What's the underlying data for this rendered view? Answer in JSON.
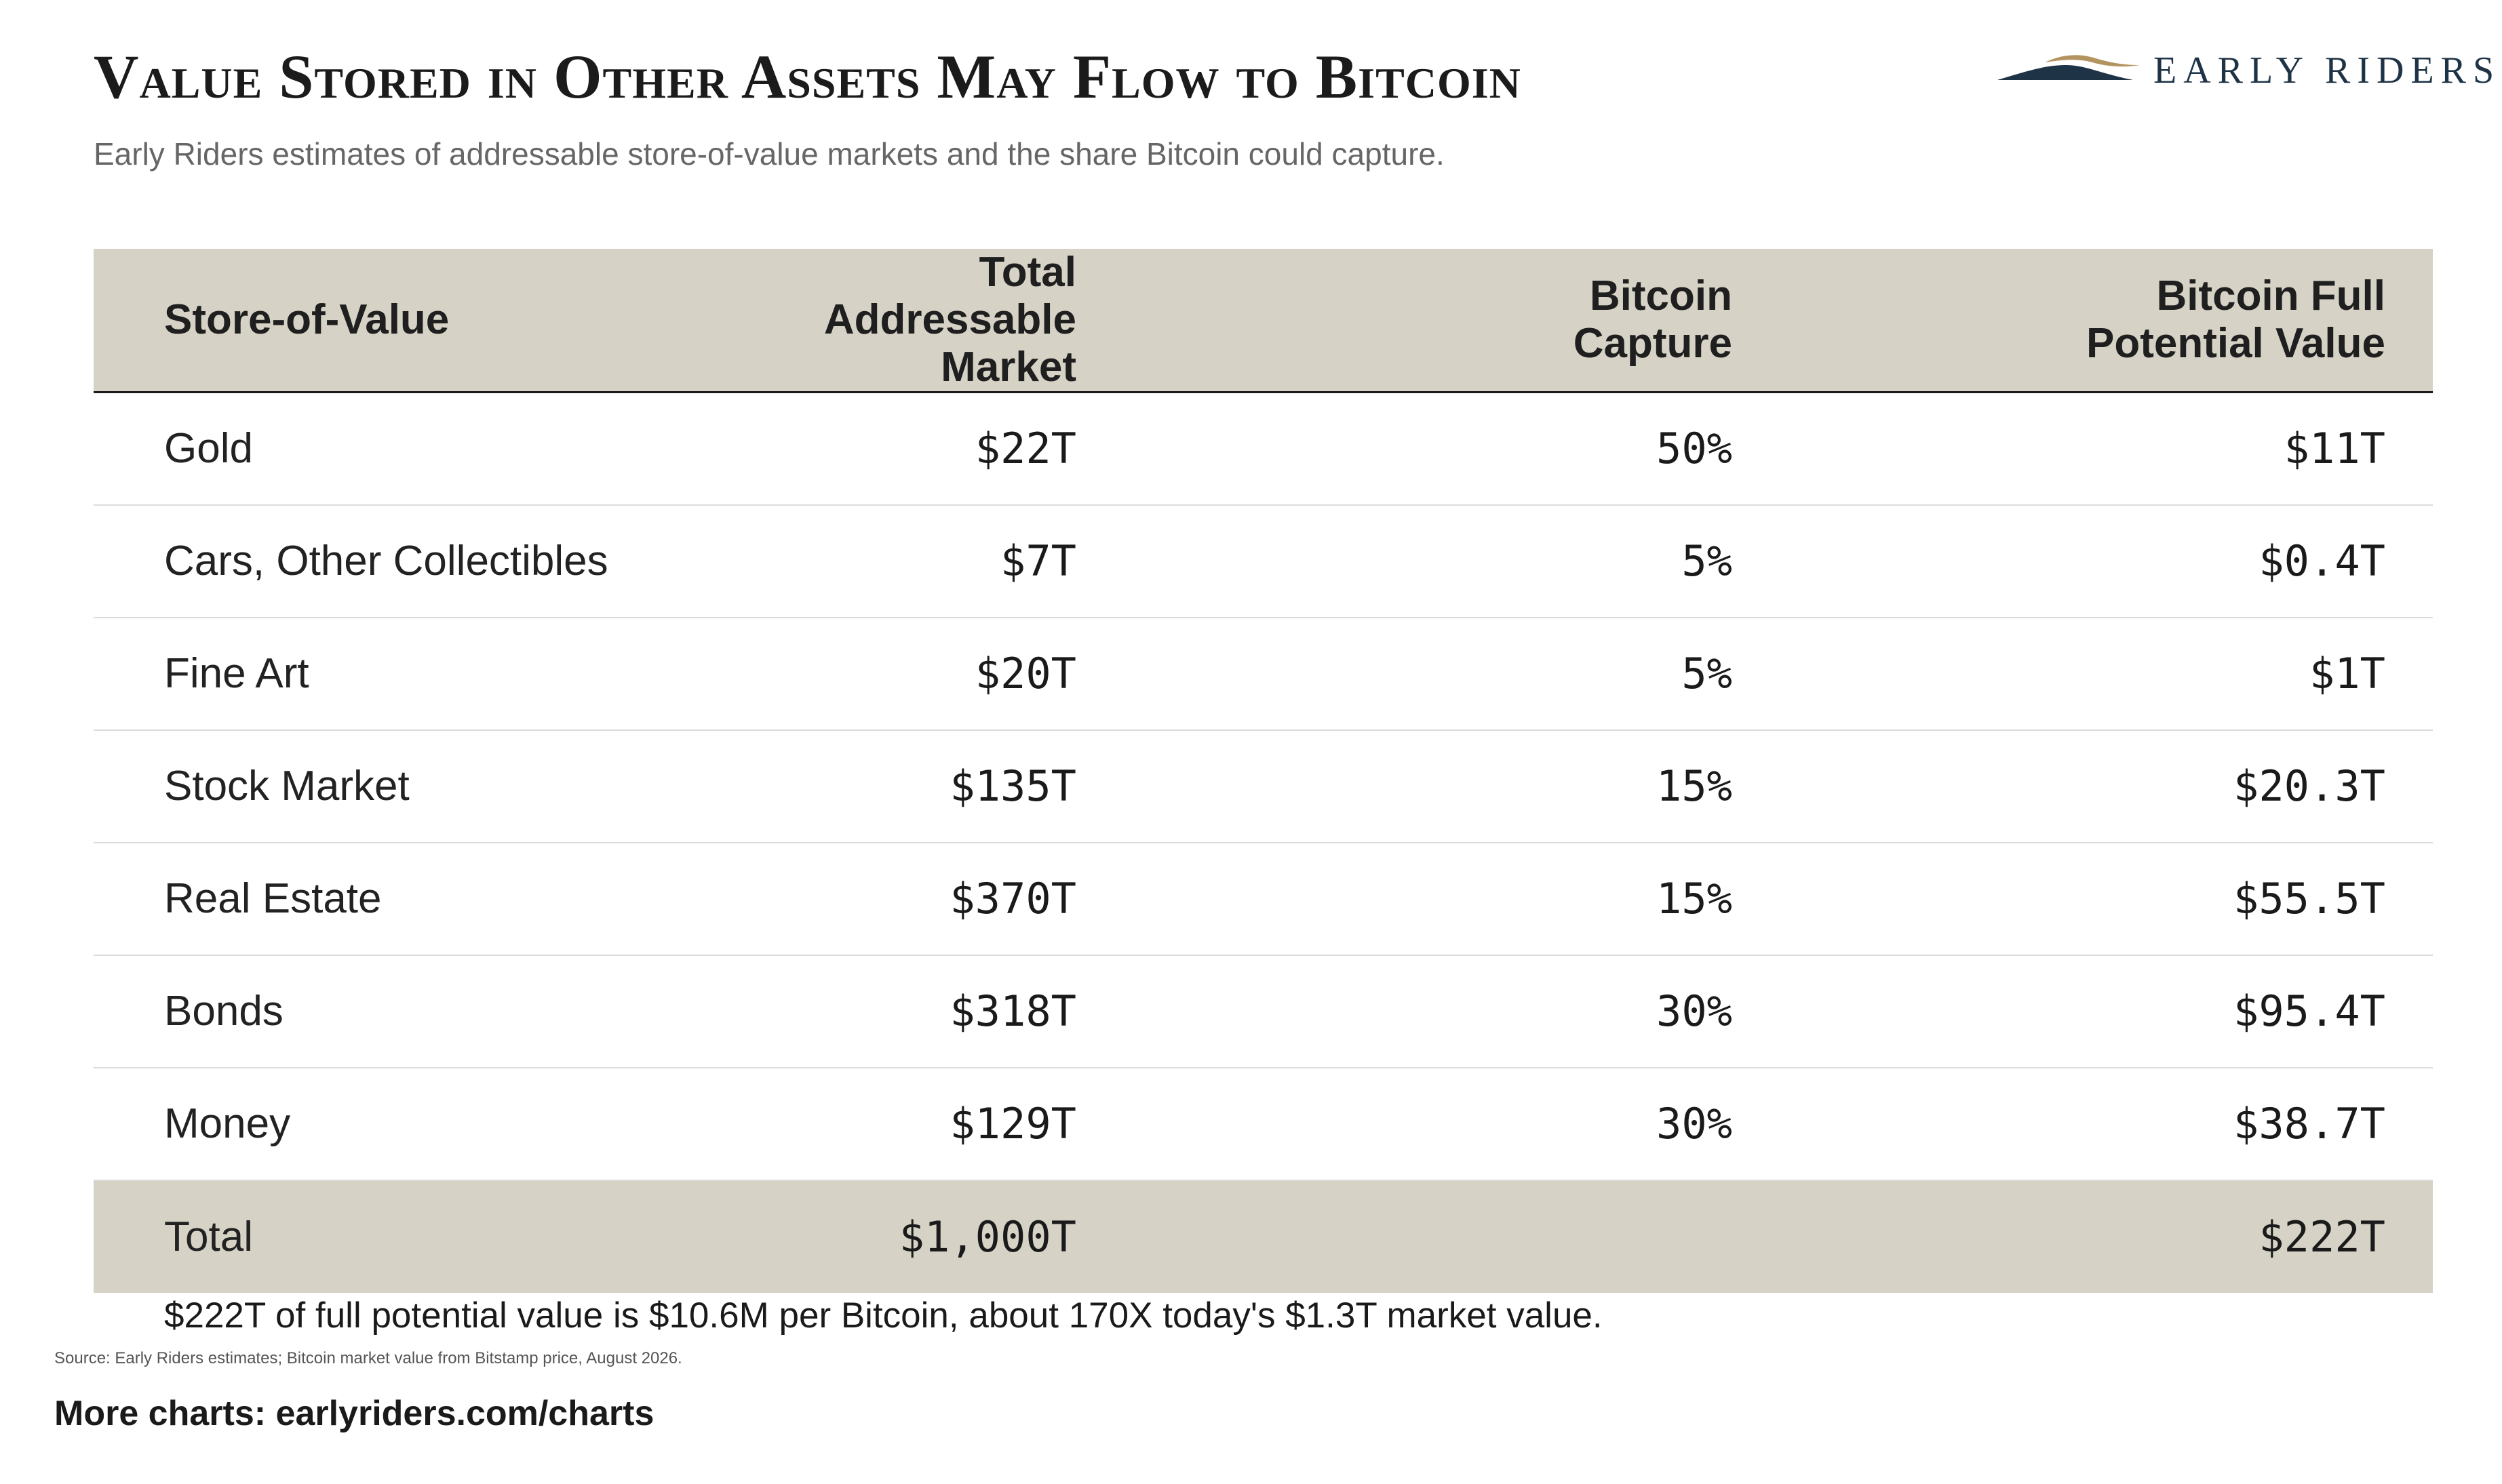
{
  "header": {
    "title": "Value Stored in Other Assets May Flow to Bitcoin",
    "subtitle": "Early Riders estimates of addressable store-of-value markets and the share Bitcoin could capture.",
    "logo_text": "EARLY RIDERS"
  },
  "chart_data": {
    "type": "table",
    "columns": [
      "Store-of-Value",
      "Total Addressable Market",
      "Bitcoin Capture",
      "Bitcoin Full Potential Value"
    ],
    "rows": [
      {
        "name": "Gold",
        "tam": "$22T",
        "capture": "50%",
        "value": "$11T"
      },
      {
        "name": "Cars, Other Collectibles",
        "tam": "$7T",
        "capture": "5%",
        "value": "$0.4T"
      },
      {
        "name": "Fine Art",
        "tam": "$20T",
        "capture": "5%",
        "value": "$1T"
      },
      {
        "name": "Stock Market",
        "tam": "$135T",
        "capture": "15%",
        "value": "$20.3T"
      },
      {
        "name": "Real Estate",
        "tam": "$370T",
        "capture": "15%",
        "value": "$55.5T"
      },
      {
        "name": "Bonds",
        "tam": "$318T",
        "capture": "30%",
        "value": "$95.4T"
      },
      {
        "name": "Money",
        "tam": "$129T",
        "capture": "30%",
        "value": "$38.7T"
      }
    ],
    "total": {
      "name": "Total",
      "tam": "$1,000T",
      "capture": "",
      "value": "$222T"
    }
  },
  "footer": {
    "note": "$222T of full potential value is $10.6M per Bitcoin, about 170X today's $1.3T market value.",
    "source": "Source: Early Riders estimates; Bitcoin market value from Bitstamp price, August 2026.",
    "more": "More charts: earlyriders.com/charts"
  },
  "colors": {
    "header_band": "#d6d3c6",
    "logo_navy": "#1e3346",
    "logo_gold": "#b39460",
    "rule": "#1a1a1a"
  }
}
